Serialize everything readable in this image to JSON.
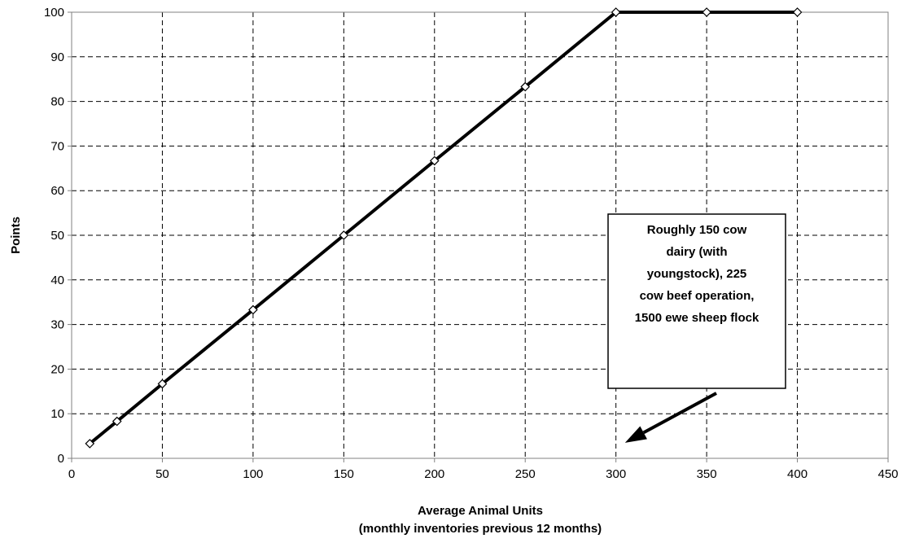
{
  "chart_data": {
    "type": "line",
    "title": "",
    "xlabel": "Average Animal Units",
    "xlabel_sub": "(monthly inventories previous 12 months)",
    "ylabel": "Points",
    "xlim": [
      0,
      450
    ],
    "ylim": [
      0,
      100
    ],
    "xticks": [
      0,
      50,
      100,
      150,
      200,
      250,
      300,
      350,
      400,
      450
    ],
    "yticks": [
      0,
      10,
      20,
      30,
      40,
      50,
      60,
      70,
      80,
      90,
      100
    ],
    "grid": true,
    "legend": "none",
    "series": [
      {
        "x": [
          10,
          25,
          50,
          100,
          150,
          200,
          250,
          300,
          350,
          400
        ],
        "y": [
          3.3,
          8.3,
          16.7,
          33.3,
          50,
          66.7,
          83.3,
          100,
          100,
          100
        ],
        "color": "#000000",
        "marker": "diamond-open"
      }
    ],
    "annotations": [
      {
        "lines": [
          "Roughly 150 cow",
          "dairy (with",
          "youngstock), 225",
          "cow beef operation,",
          "1500 ewe sheep flock"
        ],
        "arrow_to": [
          305,
          3.5
        ]
      }
    ]
  }
}
